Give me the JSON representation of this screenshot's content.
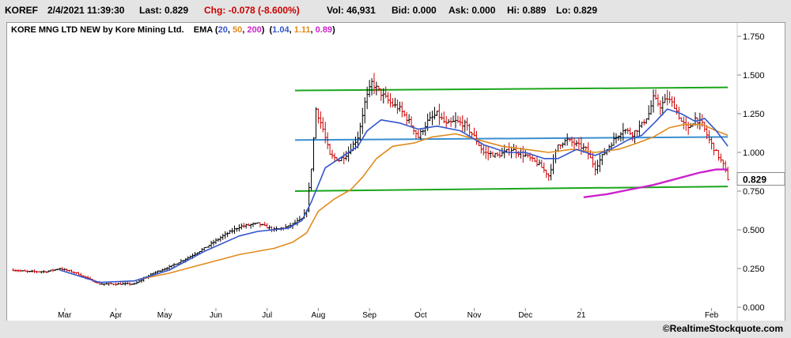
{
  "quote": {
    "symbol": "KOREF",
    "datetime": "2/4/2021 11:39:30",
    "last": "Last: 0.829",
    "chg": "Chg: -0.078 (-8.600%)",
    "vol": "Vol: 46,931",
    "bid": "Bid: 0.000",
    "ask": "Ask: 0.000",
    "hi": "Hi: 0.889",
    "lo": "Lo: 0.829"
  },
  "legend": {
    "title": "KORE MNG LTD NEW by Kore Mining Ltd.",
    "ema_label": "EMA",
    "ema_open": "(",
    "p20": "20",
    "p50": "50",
    "p200": "200",
    "ema_close": ")",
    "vals_open": "(",
    "v20": "1.04",
    "v50": "1.11",
    "v200": "0.89",
    "vals_close": ")"
  },
  "colors": {
    "price_up": "#000000",
    "price_down": "#cc0000",
    "ema20": "#3355cc",
    "ema50": "#e08a1e",
    "ema200": "#cc22cc",
    "resistance": "#1aa61a",
    "midline": "#3a8fd0",
    "change_negative": "#cc0000",
    "last_badge_bg": "#ffffff"
  },
  "copyright": "©RealtimeStockquote.com",
  "chart_data": {
    "type": "ohlc",
    "title": "KORE MNG LTD NEW by Kore Mining Ltd.",
    "ylim": [
      0.0,
      1.75
    ],
    "y_ticks": [
      "0.000",
      "0.250",
      "0.500",
      "0.750",
      "1.000",
      "1.250",
      "1.500",
      "1.750"
    ],
    "x_ticks": [
      "Mar",
      "Apr",
      "May",
      "Jun",
      "Jul",
      "Aug",
      "Sep",
      "Oct",
      "Nov",
      "Dec",
      "21",
      "Feb"
    ],
    "last_label": "0.829",
    "grid": false,
    "price_anchors": [
      {
        "t": 0,
        "v": 0.24
      },
      {
        "t": 6,
        "v": 0.23
      },
      {
        "t": 14,
        "v": 0.23
      },
      {
        "t": 20,
        "v": 0.25
      },
      {
        "t": 27,
        "v": 0.22
      },
      {
        "t": 37,
        "v": 0.15
      },
      {
        "t": 45,
        "v": 0.15
      },
      {
        "t": 52,
        "v": 0.15
      },
      {
        "t": 60,
        "v": 0.22
      },
      {
        "t": 67,
        "v": 0.26
      },
      {
        "t": 75,
        "v": 0.32
      },
      {
        "t": 82,
        "v": 0.38
      },
      {
        "t": 90,
        "v": 0.46
      },
      {
        "t": 97,
        "v": 0.52
      },
      {
        "t": 105,
        "v": 0.54
      },
      {
        "t": 112,
        "v": 0.5
      },
      {
        "t": 118,
        "v": 0.52
      },
      {
        "t": 124,
        "v": 0.57
      },
      {
        "t": 126,
        "v": 0.63
      },
      {
        "t": 128,
        "v": 0.9
      },
      {
        "t": 130,
        "v": 1.28
      },
      {
        "t": 133,
        "v": 1.15
      },
      {
        "t": 136,
        "v": 0.98
      },
      {
        "t": 140,
        "v": 0.95
      },
      {
        "t": 144,
        "v": 1.0
      },
      {
        "t": 148,
        "v": 1.1
      },
      {
        "t": 151,
        "v": 1.32
      },
      {
        "t": 154,
        "v": 1.45
      },
      {
        "t": 158,
        "v": 1.38
      },
      {
        "t": 162,
        "v": 1.32
      },
      {
        "t": 166,
        "v": 1.28
      },
      {
        "t": 170,
        "v": 1.2
      },
      {
        "t": 174,
        "v": 1.1
      },
      {
        "t": 178,
        "v": 1.2
      },
      {
        "t": 182,
        "v": 1.25
      },
      {
        "t": 186,
        "v": 1.18
      },
      {
        "t": 190,
        "v": 1.2
      },
      {
        "t": 194,
        "v": 1.18
      },
      {
        "t": 198,
        "v": 1.1
      },
      {
        "t": 202,
        "v": 1.0
      },
      {
        "t": 208,
        "v": 0.98
      },
      {
        "t": 214,
        "v": 1.02
      },
      {
        "t": 220,
        "v": 0.98
      },
      {
        "t": 226,
        "v": 0.92
      },
      {
        "t": 230,
        "v": 0.85
      },
      {
        "t": 234,
        "v": 1.05
      },
      {
        "t": 238,
        "v": 1.08
      },
      {
        "t": 242,
        "v": 1.05
      },
      {
        "t": 246,
        "v": 1.02
      },
      {
        "t": 250,
        "v": 0.9
      },
      {
        "t": 254,
        "v": 1.0
      },
      {
        "t": 258,
        "v": 1.08
      },
      {
        "t": 262,
        "v": 1.15
      },
      {
        "t": 266,
        "v": 1.12
      },
      {
        "t": 270,
        "v": 1.18
      },
      {
        "t": 273,
        "v": 1.25
      },
      {
        "t": 275,
        "v": 1.35
      },
      {
        "t": 278,
        "v": 1.3
      },
      {
        "t": 281,
        "v": 1.35
      },
      {
        "t": 284,
        "v": 1.3
      },
      {
        "t": 287,
        "v": 1.2
      },
      {
        "t": 290,
        "v": 1.15
      },
      {
        "t": 293,
        "v": 1.22
      },
      {
        "t": 296,
        "v": 1.18
      },
      {
        "t": 299,
        "v": 1.08
      },
      {
        "t": 302,
        "v": 1.0
      },
      {
        "t": 305,
        "v": 0.92
      },
      {
        "t": 307,
        "v": 0.83
      }
    ],
    "ema20": [
      {
        "t": 20,
        "v": 0.24
      },
      {
        "t": 37,
        "v": 0.16
      },
      {
        "t": 52,
        "v": 0.17
      },
      {
        "t": 67,
        "v": 0.24
      },
      {
        "t": 82,
        "v": 0.36
      },
      {
        "t": 97,
        "v": 0.46
      },
      {
        "t": 105,
        "v": 0.49
      },
      {
        "t": 118,
        "v": 0.51
      },
      {
        "t": 124,
        "v": 0.56
      },
      {
        "t": 128,
        "v": 0.68
      },
      {
        "t": 134,
        "v": 0.9
      },
      {
        "t": 140,
        "v": 0.96
      },
      {
        "t": 148,
        "v": 1.04
      },
      {
        "t": 152,
        "v": 1.14
      },
      {
        "t": 158,
        "v": 1.21
      },
      {
        "t": 166,
        "v": 1.19
      },
      {
        "t": 174,
        "v": 1.15
      },
      {
        "t": 182,
        "v": 1.17
      },
      {
        "t": 192,
        "v": 1.14
      },
      {
        "t": 202,
        "v": 1.05
      },
      {
        "t": 212,
        "v": 1.0
      },
      {
        "t": 220,
        "v": 1.0
      },
      {
        "t": 228,
        "v": 0.96
      },
      {
        "t": 234,
        "v": 0.96
      },
      {
        "t": 242,
        "v": 1.02
      },
      {
        "t": 250,
        "v": 0.98
      },
      {
        "t": 258,
        "v": 1.03
      },
      {
        "t": 264,
        "v": 1.08
      },
      {
        "t": 270,
        "v": 1.11
      },
      {
        "t": 276,
        "v": 1.2
      },
      {
        "t": 281,
        "v": 1.28
      },
      {
        "t": 287,
        "v": 1.25
      },
      {
        "t": 293,
        "v": 1.2
      },
      {
        "t": 297,
        "v": 1.22
      },
      {
        "t": 302,
        "v": 1.14
      },
      {
        "t": 307,
        "v": 1.04
      }
    ],
    "ema50": [
      {
        "t": 54,
        "v": 0.18
      },
      {
        "t": 67,
        "v": 0.22
      },
      {
        "t": 82,
        "v": 0.28
      },
      {
        "t": 97,
        "v": 0.34
      },
      {
        "t": 112,
        "v": 0.38
      },
      {
        "t": 120,
        "v": 0.42
      },
      {
        "t": 126,
        "v": 0.48
      },
      {
        "t": 131,
        "v": 0.62
      },
      {
        "t": 138,
        "v": 0.7
      },
      {
        "t": 145,
        "v": 0.76
      },
      {
        "t": 150,
        "v": 0.84
      },
      {
        "t": 156,
        "v": 0.96
      },
      {
        "t": 163,
        "v": 1.04
      },
      {
        "t": 172,
        "v": 1.06
      },
      {
        "t": 180,
        "v": 1.1
      },
      {
        "t": 190,
        "v": 1.12
      },
      {
        "t": 200,
        "v": 1.08
      },
      {
        "t": 210,
        "v": 1.04
      },
      {
        "t": 220,
        "v": 1.02
      },
      {
        "t": 230,
        "v": 1.0
      },
      {
        "t": 240,
        "v": 1.02
      },
      {
        "t": 250,
        "v": 1.0
      },
      {
        "t": 260,
        "v": 1.02
      },
      {
        "t": 268,
        "v": 1.06
      },
      {
        "t": 275,
        "v": 1.1
      },
      {
        "t": 282,
        "v": 1.16
      },
      {
        "t": 288,
        "v": 1.18
      },
      {
        "t": 296,
        "v": 1.18
      },
      {
        "t": 302,
        "v": 1.14
      },
      {
        "t": 307,
        "v": 1.11
      }
    ],
    "ema200": [
      {
        "t": 245,
        "v": 0.71
      },
      {
        "t": 255,
        "v": 0.73
      },
      {
        "t": 265,
        "v": 0.76
      },
      {
        "t": 275,
        "v": 0.79
      },
      {
        "t": 285,
        "v": 0.83
      },
      {
        "t": 295,
        "v": 0.87
      },
      {
        "t": 302,
        "v": 0.89
      },
      {
        "t": 307,
        "v": 0.89
      }
    ],
    "trendlines": [
      {
        "name": "resistance",
        "t1": 121,
        "v1": 1.4,
        "t2": 307,
        "v2": 1.42
      },
      {
        "name": "midline",
        "t1": 121,
        "v1": 1.08,
        "t2": 307,
        "v2": 1.1
      },
      {
        "name": "support",
        "t1": 121,
        "v1": 0.75,
        "t2": 307,
        "v2": 0.78
      }
    ]
  }
}
